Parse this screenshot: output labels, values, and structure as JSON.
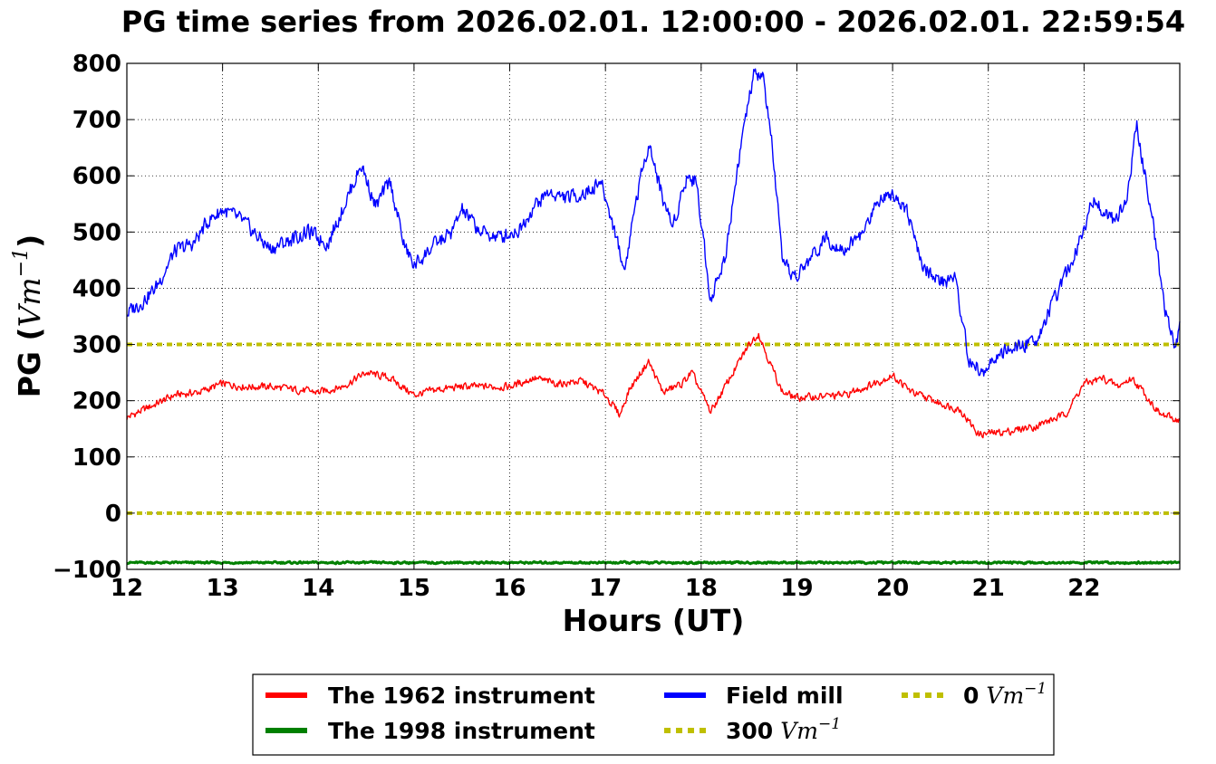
{
  "chart_data": {
    "type": "line",
    "title": "PG time series from 2026.02.01. 12:00:00 - 2026.02.01. 22:59:54",
    "xlabel": "Hours (UT)",
    "ylabel_text": "PG (",
    "ylabel_math": "Vm",
    "ylabel_sup": "−1",
    "ylabel_close": ")",
    "xlim": [
      12,
      23
    ],
    "ylim": [
      -100,
      800
    ],
    "xticks": [
      12,
      13,
      14,
      15,
      16,
      17,
      18,
      19,
      20,
      21,
      22
    ],
    "xtick_labels": [
      "12",
      "13",
      "14",
      "15",
      "16",
      "17",
      "18",
      "19",
      "20",
      "21",
      "22"
    ],
    "yticks": [
      -100,
      0,
      100,
      200,
      300,
      400,
      500,
      600,
      700,
      800
    ],
    "ytick_labels": [
      "−100",
      "0",
      "100",
      "200",
      "300",
      "400",
      "500",
      "600",
      "700",
      "800"
    ],
    "grid": true,
    "legend_position": "bottom-center",
    "series": [
      {
        "name": "The 1962 instrument",
        "color": "#ff0000",
        "x": [
          12.0,
          12.25,
          12.5,
          12.75,
          13.0,
          13.25,
          13.5,
          13.75,
          14.0,
          14.25,
          14.5,
          14.75,
          15.0,
          15.25,
          15.5,
          15.75,
          16.0,
          16.25,
          16.5,
          16.75,
          17.0,
          17.15,
          17.25,
          17.45,
          17.6,
          17.8,
          17.9,
          18.1,
          18.3,
          18.5,
          18.6,
          18.7,
          18.85,
          19.0,
          19.5,
          19.8,
          20.0,
          20.2,
          20.5,
          20.7,
          20.9,
          21.2,
          21.5,
          21.8,
          22.0,
          22.2,
          22.35,
          22.5,
          22.6,
          22.8,
          23.0
        ],
        "y": [
          170,
          190,
          210,
          215,
          230,
          225,
          225,
          220,
          215,
          225,
          250,
          240,
          210,
          220,
          225,
          225,
          225,
          240,
          230,
          235,
          210,
          175,
          220,
          270,
          215,
          230,
          250,
          180,
          240,
          300,
          320,
          275,
          215,
          205,
          210,
          230,
          245,
          215,
          195,
          185,
          140,
          145,
          155,
          175,
          230,
          240,
          225,
          240,
          220,
          175,
          165
        ]
      },
      {
        "name": "The 1998 instrument",
        "color": "#008000",
        "x": [
          12.0,
          23.0
        ],
        "y": [
          -88,
          -88
        ]
      },
      {
        "name": "Field mill",
        "color": "#0000ff",
        "x": [
          12.0,
          12.15,
          12.3,
          12.5,
          12.7,
          12.85,
          13.0,
          13.2,
          13.5,
          13.7,
          13.9,
          14.1,
          14.25,
          14.45,
          14.6,
          14.75,
          14.9,
          15.0,
          15.2,
          15.4,
          15.5,
          15.7,
          15.9,
          16.1,
          16.25,
          16.4,
          16.6,
          16.8,
          16.95,
          17.1,
          17.2,
          17.3,
          17.45,
          17.6,
          17.7,
          17.85,
          17.95,
          18.1,
          18.25,
          18.4,
          18.55,
          18.65,
          18.75,
          18.85,
          19.0,
          19.3,
          19.5,
          19.7,
          19.85,
          20.0,
          20.15,
          20.3,
          20.5,
          20.65,
          20.8,
          20.95,
          21.1,
          21.3,
          21.5,
          21.7,
          21.9,
          22.1,
          22.3,
          22.45,
          22.55,
          22.7,
          22.85,
          22.95,
          23.0
        ],
        "y": [
          355,
          375,
          400,
          465,
          480,
          520,
          540,
          520,
          470,
          485,
          500,
          480,
          540,
          620,
          545,
          590,
          475,
          440,
          475,
          500,
          540,
          500,
          490,
          505,
          545,
          570,
          560,
          570,
          590,
          500,
          430,
          540,
          660,
          560,
          510,
          600,
          590,
          380,
          455,
          640,
          780,
          775,
          640,
          440,
          420,
          490,
          470,
          500,
          560,
          570,
          540,
          440,
          410,
          420,
          270,
          250,
          280,
          295,
          310,
          380,
          460,
          560,
          520,
          560,
          690,
          540,
          360,
          290,
          340
        ]
      }
    ],
    "reference_lines": [
      {
        "name": "300",
        "name_math": "Vm",
        "name_sup": "−1",
        "y": 300,
        "color": "#bfbf00"
      },
      {
        "name": "0",
        "name_math": "Vm",
        "name_sup": "−1",
        "y": 0,
        "color": "#bfbf00"
      }
    ]
  }
}
